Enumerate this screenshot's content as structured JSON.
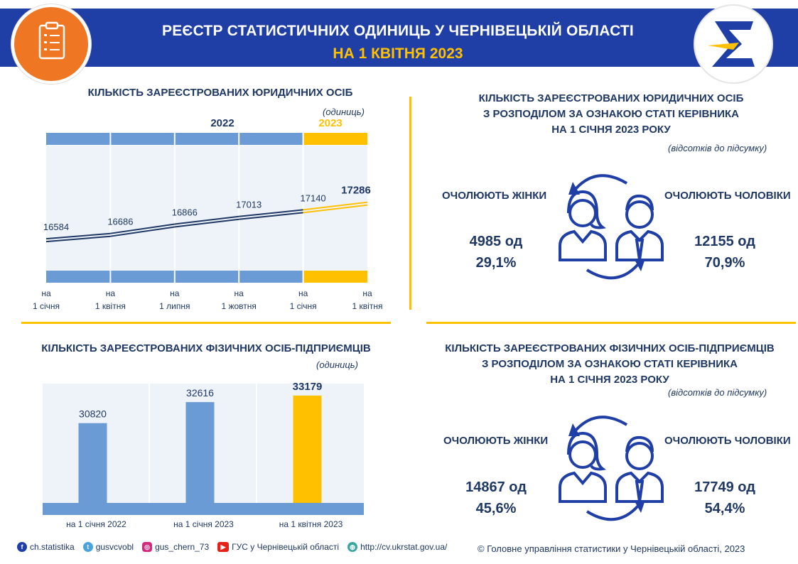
{
  "header": {
    "title": "РЕЄСТР СТАТИСТИЧНИХ ОДИНИЦЬ У ЧЕРНІВЕЦЬКІЙ ОБЛАСТІ",
    "subtitle": "НА 1 КВІТНЯ 2023",
    "logo_left_icon": "clipboard-icon",
    "logo_right_icon": "sigma-icon",
    "colors": {
      "header_bg": "#1f3fa6",
      "accent": "#ffc000",
      "orange": "#ef7622",
      "bar_blue": "#6a9bd4"
    }
  },
  "legal_chart": {
    "title": "КІЛЬКІСТЬ ЗАРЕЄСТРОВАНИХ ЮРИДИЧНИХ ОСІБ",
    "unit": "(одиниць)",
    "year_2022": "2022",
    "year_2023": "2023",
    "x_labels": [
      [
        "на",
        "1 січня"
      ],
      [
        "на",
        "1 квітня"
      ],
      [
        "на",
        "1 липня"
      ],
      [
        "на",
        "1 жовтня"
      ],
      [
        "на",
        "1 січня"
      ],
      [
        "на",
        "1 квітня"
      ]
    ],
    "value_labels": [
      "16584",
      "16686",
      "16866",
      "17013",
      "17140",
      "17286"
    ]
  },
  "entrepreneur_chart": {
    "title": "КІЛЬКІСТЬ ЗАРЕЄСТРОВАНИХ ФІЗИЧНИХ ОСІБ-ПІДПРИЄМЦІВ",
    "unit": "(одиниць)",
    "categories": [
      "на 1 січня 2022",
      "на 1 січня 2023",
      "на 1 квітня 2023"
    ],
    "value_labels": [
      "30820",
      "32616",
      "33179"
    ]
  },
  "chart_data": [
    {
      "type": "line",
      "title": "КІЛЬКІСТЬ ЗАРЕЄСТРОВАНИХ ЮРИДИЧНИХ ОСІБ",
      "ylabel": "(одиниць)",
      "categories": [
        "на 1 січня 2022",
        "на 1 квітня 2022",
        "на 1 липня 2022",
        "на 1 жовтня 2022",
        "на 1 січня 2023",
        "на 1 квітня 2023"
      ],
      "values": [
        16584,
        16686,
        16866,
        17013,
        17140,
        17286
      ],
      "grid": true
    },
    {
      "type": "bar",
      "title": "КІЛЬКІСТЬ ЗАРЕЄСТРОВАНИХ ФІЗИЧНИХ ОСІБ-ПІДПРИЄМЦІВ",
      "ylabel": "(одиниць)",
      "categories": [
        "на 1 січня 2022",
        "на 1 січня 2023",
        "на 1 квітня 2023"
      ],
      "values": [
        30820,
        32616,
        33179
      ],
      "grid": true
    }
  ],
  "legal_gender": {
    "title_lines": [
      "КІЛЬКІСТЬ ЗАРЕЄСТРОВАНИХ ЮРИДИЧНИХ ОСІБ",
      "З РОЗПОДІЛОМ ЗА ОЗНАКОЮ СТАТІ КЕРІВНИКА",
      "НА 1 СІЧНЯ 2023 РОКУ"
    ],
    "unit": "(відсотків до підсумку)",
    "women_label": "ОЧОЛЮЮТЬ ЖІНКИ",
    "men_label": "ОЧОЛЮЮТЬ ЧОЛОВІКИ",
    "women_count": "4985 од",
    "women_pct": "29,1%",
    "men_count": "12155 од",
    "men_pct": "70,9%"
  },
  "ent_gender": {
    "title_lines": [
      "КІЛЬКІСТЬ ЗАРЕЄСТРОВАНИХ ФІЗИЧНИХ ОСІБ-ПІДПРИЄМЦІВ",
      "З РОЗПОДІЛОМ ЗА ОЗНАКОЮ СТАТІ КЕРІВНИКА",
      "НА 1 СІЧНЯ 2023 РОКУ"
    ],
    "unit": "(відсотків до підсумку)",
    "women_label": "ОЧОЛЮЮТЬ ЖІНКИ",
    "men_label": "ОЧОЛЮЮТЬ ЧОЛОВІКИ",
    "women_count": "14867 од",
    "women_pct": "45,6%",
    "men_count": "17749 од",
    "men_pct": "54,4%"
  },
  "footer": {
    "facebook": "ch.statistika",
    "twitter": "gusvcvobl",
    "instagram": "gus_chern_73",
    "youtube": "ГУС у Чернівецькій області",
    "web": "http://cv.ukrstat.gov.ua/",
    "copyright": "© Головне управління статистики у Чернівецькій області, 2023"
  }
}
